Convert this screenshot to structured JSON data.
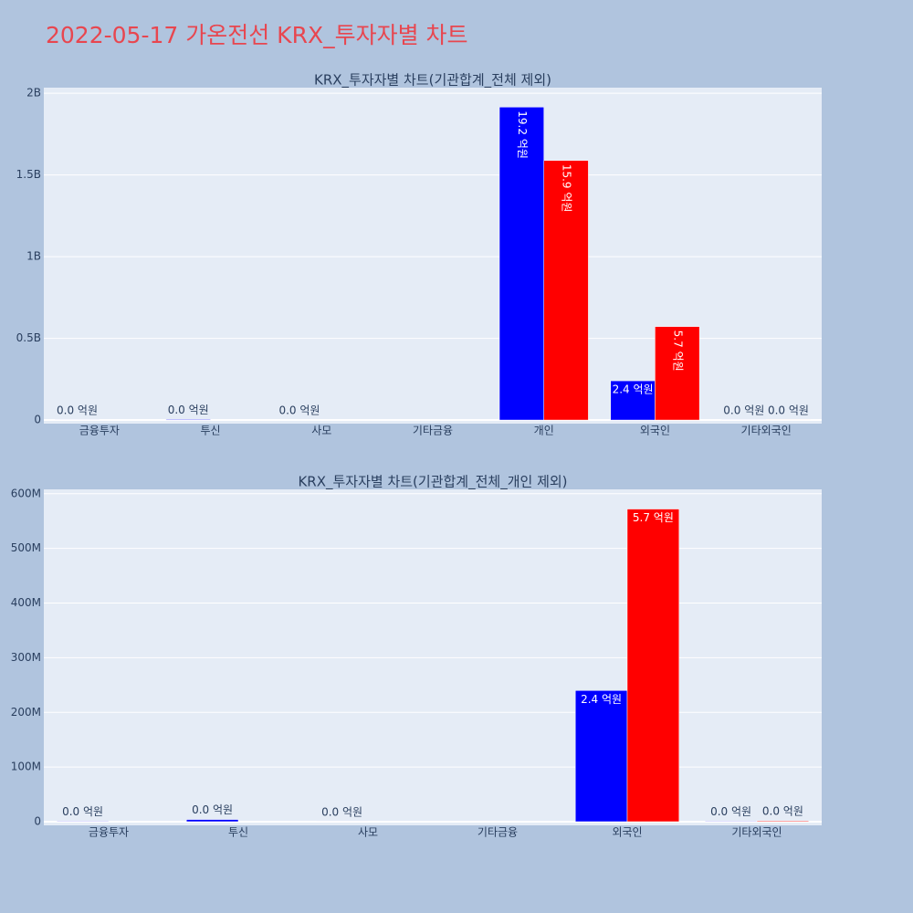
{
  "title": "2022-05-17 가온전선 KRX_투자자별 차트",
  "chart_data": [
    {
      "type": "bar",
      "title": "KRX_투자자별 차트(기관합계_전체 제외)",
      "categories": [
        "금융투자",
        "투신",
        "사모",
        "기타금융",
        "개인",
        "외국인",
        "기타외국인"
      ],
      "series": [
        {
          "color": "#0000ff",
          "values": [
            1000000,
            4000000,
            300000,
            null,
            1915000000,
            240000000,
            1000000
          ],
          "value_labels": [
            "0.0 억원",
            "0.0 억원",
            "0.0 억원",
            null,
            "19.2 억원",
            "2.4 억원",
            "0.0 억원"
          ]
        },
        {
          "color": "#ff0000",
          "values": [
            null,
            null,
            null,
            null,
            1588000000,
            572000000,
            1500000
          ],
          "value_labels": [
            null,
            null,
            null,
            null,
            "15.9 억원",
            "5.7 억원",
            "0.0 억원"
          ]
        }
      ],
      "ylim": [
        -22000000,
        2034000000
      ],
      "yticks": [
        0,
        {
          "value": 500000000,
          "label": "0.5B"
        },
        {
          "value": 1000000000,
          "label": "1B"
        },
        {
          "value": 1500000000,
          "label": "1.5B"
        },
        {
          "value": 2000000000,
          "label": "2B"
        }
      ],
      "grid": true
    },
    {
      "type": "bar",
      "title": "KRX_투자자별 차트(기관합계_전체_개인 제외)",
      "categories": [
        "금융투자",
        "투신",
        "사모",
        "기타금융",
        "외국인",
        "기타외국인"
      ],
      "series": [
        {
          "color": "#0000ff",
          "values": [
            1000000,
            4000000,
            300000,
            null,
            240000000,
            1000000
          ],
          "value_labels": [
            "0.0 억원",
            "0.0 억원",
            "0.0 억원",
            null,
            "2.4 억원",
            "0.0 억원"
          ]
        },
        {
          "color": "#ff0000",
          "values": [
            null,
            null,
            null,
            null,
            572000000,
            1500000
          ],
          "value_labels": [
            null,
            null,
            null,
            null,
            "5.7 억원",
            "0.0 억원"
          ]
        }
      ],
      "ylim": [
        -6700000,
        608000000
      ],
      "yticks": [
        0,
        {
          "value": 100000000,
          "label": "100M"
        },
        {
          "value": 200000000,
          "label": "200M"
        },
        {
          "value": 300000000,
          "label": "300M"
        },
        {
          "value": 400000000,
          "label": "400M"
        },
        {
          "value": 500000000,
          "label": "500M"
        },
        {
          "value": 600000000,
          "label": "600M"
        }
      ],
      "grid": true
    }
  ]
}
